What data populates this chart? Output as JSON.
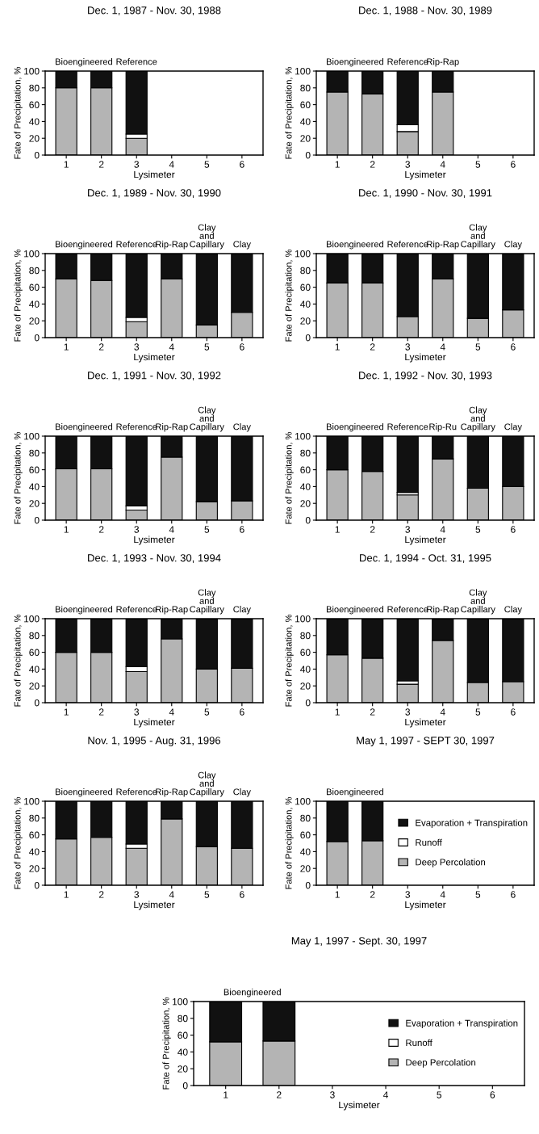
{
  "chart_data": [
    {
      "type": "bar",
      "stacked": true,
      "title": "Dec. 1, 1987 - Nov. 30, 1988",
      "xlabel": "Lysimeter",
      "ylabel": "Fate of Precipitation, %",
      "categories": [
        "1",
        "2",
        "3",
        "4",
        "5",
        "6"
      ],
      "ylim": [
        0,
        100
      ],
      "yticks": [
        0,
        20,
        40,
        60,
        80,
        100
      ],
      "series": [
        {
          "color": "#b4b4b4",
          "values": [
            80,
            80,
            20,
            null,
            null,
            null
          ]
        },
        {
          "color": "#ffffff",
          "values": [
            0,
            0,
            5,
            null,
            null,
            null
          ]
        },
        {
          "color": "#111111",
          "values": [
            20,
            20,
            75,
            null,
            null,
            null
          ]
        }
      ],
      "annotations": [
        {
          "text": "Bioengineered",
          "x": "1",
          "y": 100
        },
        {
          "text": "Reference",
          "x": "3",
          "y": 100
        }
      ]
    },
    {
      "type": "bar",
      "stacked": true,
      "title": "Dec. 1, 1988 - Nov. 30, 1989",
      "xlabel": "Lysimeter",
      "ylabel": "Fate of Precipitation, %",
      "categories": [
        "1",
        "2",
        "3",
        "4",
        "5",
        "6"
      ],
      "ylim": [
        0,
        100
      ],
      "yticks": [
        0,
        20,
        40,
        60,
        80,
        100
      ],
      "series": [
        {
          "color": "#b4b4b4",
          "values": [
            75,
            73,
            28,
            75,
            null,
            null
          ]
        },
        {
          "color": "#ffffff",
          "values": [
            0,
            0,
            8,
            0,
            null,
            null
          ]
        },
        {
          "color": "#111111",
          "values": [
            25,
            27,
            64,
            25,
            null,
            null
          ]
        }
      ],
      "annotations": [
        {
          "text": "Bioengineered",
          "x": "1",
          "y": 100
        },
        {
          "text": "Reference",
          "x": "3",
          "y": 100
        },
        {
          "text": "Rip-Rap",
          "x": "4",
          "y": 100
        }
      ]
    },
    {
      "type": "bar",
      "stacked": true,
      "title": "Dec. 1, 1989 - Nov. 30, 1990",
      "xlabel": "Lysimeter",
      "ylabel": "Fate of Precipitation, %",
      "categories": [
        "1",
        "2",
        "3",
        "4",
        "5",
        "6"
      ],
      "ylim": [
        0,
        100
      ],
      "yticks": [
        0,
        20,
        40,
        60,
        80,
        100
      ],
      "series": [
        {
          "color": "#b4b4b4",
          "values": [
            70,
            68,
            19,
            70,
            15,
            30
          ]
        },
        {
          "color": "#ffffff",
          "values": [
            0,
            0,
            5,
            0,
            0,
            0
          ]
        },
        {
          "color": "#111111",
          "values": [
            30,
            32,
            76,
            30,
            85,
            70
          ]
        }
      ],
      "annotations": [
        {
          "text": "Bioengineered",
          "x": "1",
          "y": 100
        },
        {
          "text": "Reference",
          "x": "3",
          "y": 100
        },
        {
          "text": "Rip-Rap",
          "x": "4",
          "y": 100
        },
        {
          "text": "Clay\nand\nCapillary",
          "x": "5",
          "y": 100
        },
        {
          "text": "Clay",
          "x": "6",
          "y": 100
        }
      ]
    },
    {
      "type": "bar",
      "stacked": true,
      "title": "Dec. 1, 1990 - Nov. 30, 1991",
      "xlabel": "Lysimeter",
      "ylabel": "Fate of Precipitation, %",
      "categories": [
        "1",
        "2",
        "3",
        "4",
        "5",
        "6"
      ],
      "ylim": [
        0,
        100
      ],
      "yticks": [
        0,
        20,
        40,
        60,
        80,
        100
      ],
      "series": [
        {
          "color": "#b4b4b4",
          "values": [
            65,
            65,
            25,
            70,
            23,
            33
          ]
        },
        {
          "color": "#111111",
          "values": [
            35,
            35,
            75,
            30,
            77,
            67
          ]
        }
      ],
      "annotations": [
        {
          "text": "Bioengineered",
          "x": "1",
          "y": 100
        },
        {
          "text": "Reference",
          "x": "3",
          "y": 100
        },
        {
          "text": "Rip-Rap",
          "x": "4",
          "y": 100
        },
        {
          "text": "Clay\nand\nCapillary",
          "x": "5",
          "y": 100
        },
        {
          "text": "Clay",
          "x": "6",
          "y": 100
        }
      ]
    },
    {
      "type": "bar",
      "stacked": true,
      "title": "Dec. 1, 1991 - Nov. 30, 1992",
      "xlabel": "Lysimeter",
      "ylabel": "Fate of Precipitation, %",
      "categories": [
        "1",
        "2",
        "3",
        "4",
        "5",
        "6"
      ],
      "ylim": [
        0,
        100
      ],
      "yticks": [
        0,
        20,
        40,
        60,
        80,
        100
      ],
      "series": [
        {
          "color": "#b4b4b4",
          "values": [
            61,
            61,
            12,
            75,
            22,
            23
          ]
        },
        {
          "color": "#ffffff",
          "values": [
            0,
            0,
            5,
            0,
            0,
            0
          ]
        },
        {
          "color": "#111111",
          "values": [
            39,
            39,
            83,
            25,
            78,
            77
          ]
        }
      ],
      "annotations": [
        {
          "text": "Bioengineered",
          "x": "1",
          "y": 100
        },
        {
          "text": "Reference",
          "x": "3",
          "y": 100
        },
        {
          "text": "Rip-Rap",
          "x": "4",
          "y": 100
        },
        {
          "text": "Clay\nand\nCapillary",
          "x": "5",
          "y": 100
        },
        {
          "text": "Clay",
          "x": "6",
          "y": 100
        }
      ]
    },
    {
      "type": "bar",
      "stacked": true,
      "title": "Dec. 1, 1992 - Nov. 30, 1993",
      "xlabel": "Lysimeter",
      "ylabel": "Fate of Precipitation, %",
      "categories": [
        "1",
        "2",
        "3",
        "4",
        "5",
        "6"
      ],
      "ylim": [
        0,
        100
      ],
      "yticks": [
        0,
        20,
        40,
        60,
        80,
        100
      ],
      "series": [
        {
          "color": "#b4b4b4",
          "values": [
            60,
            58,
            30,
            73,
            38,
            40
          ]
        },
        {
          "color": "#ffffff",
          "values": [
            0,
            0,
            3,
            0,
            0,
            0
          ]
        },
        {
          "color": "#111111",
          "values": [
            40,
            42,
            67,
            27,
            62,
            60
          ]
        }
      ],
      "annotations": [
        {
          "text": "Bioengineered",
          "x": "1",
          "y": 100
        },
        {
          "text": "Reference",
          "x": "3",
          "y": 100
        },
        {
          "text": "Rip-Ru",
          "x": "4",
          "y": 100
        },
        {
          "text": "Clay\nand\nCapillary",
          "x": "5",
          "y": 100
        },
        {
          "text": "Clay",
          "x": "6",
          "y": 100
        }
      ]
    },
    {
      "type": "bar",
      "stacked": true,
      "title": "Dec. 1, 1993 - Nov. 30, 1994",
      "xlabel": "Lysimeter",
      "ylabel": "Fate of Precipitation, %",
      "categories": [
        "1",
        "2",
        "3",
        "4",
        "5",
        "6"
      ],
      "ylim": [
        0,
        100
      ],
      "yticks": [
        0,
        20,
        40,
        60,
        80,
        100
      ],
      "series": [
        {
          "color": "#b4b4b4",
          "values": [
            60,
            60,
            37,
            76,
            40,
            41
          ]
        },
        {
          "color": "#ffffff",
          "values": [
            0,
            0,
            6,
            0,
            0,
            0
          ]
        },
        {
          "color": "#111111",
          "values": [
            40,
            40,
            57,
            24,
            60,
            59
          ]
        }
      ],
      "annotations": [
        {
          "text": "Bioengineered",
          "x": "1",
          "y": 100
        },
        {
          "text": "Reference",
          "x": "3",
          "y": 100
        },
        {
          "text": "Rip-Rap",
          "x": "4",
          "y": 100
        },
        {
          "text": "Clay\nand\nCapillary",
          "x": "5",
          "y": 100
        },
        {
          "text": "Clay",
          "x": "6",
          "y": 100
        }
      ]
    },
    {
      "type": "bar",
      "stacked": true,
      "title": "Dec. 1, 1994 - Oct. 31, 1995",
      "xlabel": "Lysimeter",
      "ylabel": "Fate of Precipitation, %",
      "categories": [
        "1",
        "2",
        "3",
        "4",
        "5",
        "6"
      ],
      "ylim": [
        0,
        100
      ],
      "yticks": [
        0,
        20,
        40,
        60,
        80,
        100
      ],
      "series": [
        {
          "color": "#b4b4b4",
          "values": [
            57,
            53,
            22,
            74,
            24,
            25
          ]
        },
        {
          "color": "#ffffff",
          "values": [
            0,
            0,
            4,
            0,
            0,
            0
          ]
        },
        {
          "color": "#111111",
          "values": [
            43,
            47,
            74,
            26,
            76,
            75
          ]
        }
      ],
      "annotations": [
        {
          "text": "Bioengineered",
          "x": "1",
          "y": 100
        },
        {
          "text": "Reference",
          "x": "3",
          "y": 100
        },
        {
          "text": "Rip-Rap",
          "x": "4",
          "y": 100
        },
        {
          "text": "Clay\nand\nCapillary",
          "x": "5",
          "y": 100
        },
        {
          "text": "Clay",
          "x": "6",
          "y": 100
        }
      ]
    },
    {
      "type": "bar",
      "stacked": true,
      "title": "Nov. 1, 1995 - Aug. 31, 1996",
      "xlabel": "Lysimeter",
      "ylabel": "Fate of Precipitation, %",
      "categories": [
        "1",
        "2",
        "3",
        "4",
        "5",
        "6"
      ],
      "ylim": [
        0,
        100
      ],
      "yticks": [
        0,
        20,
        40,
        60,
        80,
        100
      ],
      "series": [
        {
          "color": "#b4b4b4",
          "values": [
            55,
            57,
            44,
            79,
            46,
            44
          ]
        },
        {
          "color": "#ffffff",
          "values": [
            0,
            0,
            5,
            0,
            0,
            0
          ]
        },
        {
          "color": "#111111",
          "values": [
            45,
            43,
            51,
            21,
            54,
            56
          ]
        }
      ],
      "annotations": [
        {
          "text": "Bioengineered",
          "x": "1",
          "y": 100
        },
        {
          "text": "Reference",
          "x": "3",
          "y": 100
        },
        {
          "text": "Rip-Rap",
          "x": "4",
          "y": 100
        },
        {
          "text": "Clay\nand\nCapillary",
          "x": "5",
          "y": 100
        },
        {
          "text": "Clay",
          "x": "6",
          "y": 100
        }
      ]
    },
    {
      "type": "bar",
      "stacked": true,
      "title": "May 1, 1997 - SEPT 30, 1997",
      "xlabel": "Lysimeter",
      "ylabel": "Fate of Precipitation, %",
      "categories": [
        "1",
        "2",
        "3",
        "4",
        "5",
        "6"
      ],
      "ylim": [
        0,
        100
      ],
      "yticks": [
        0,
        20,
        40,
        60,
        80,
        100
      ],
      "legend": "right",
      "series": [
        {
          "name": "Deep Percolation",
          "color": "#b4b4b4",
          "values": [
            52,
            53,
            null,
            null,
            null,
            null
          ]
        },
        {
          "name": "Runoff",
          "color": "#ffffff",
          "values": [
            0,
            0,
            null,
            null,
            null,
            null
          ]
        },
        {
          "name": "Evaporation + Transpiration",
          "color": "#111111",
          "values": [
            48,
            47,
            null,
            null,
            null,
            null
          ]
        }
      ],
      "annotations": [
        {
          "text": "Bioengineered",
          "x": "1",
          "y": 100
        }
      ]
    },
    {
      "type": "bar",
      "stacked": true,
      "title": "May 1, 1997 - Sept. 30, 1997",
      "xlabel": "Lysimeter",
      "ylabel": "Fate of Precipitation, %",
      "categories": [
        "1",
        "2",
        "3",
        "4",
        "5",
        "6"
      ],
      "ylim": [
        0,
        100
      ],
      "yticks": [
        0,
        20,
        40,
        60,
        80,
        100
      ],
      "legend": "right",
      "series": [
        {
          "name": "Deep Percolation",
          "color": "#b4b4b4",
          "values": [
            52,
            53,
            null,
            null,
            null,
            null
          ]
        },
        {
          "name": "Runoff",
          "color": "#ffffff",
          "values": [
            0,
            0,
            null,
            null,
            null,
            null
          ]
        },
        {
          "name": "Evaporation + Transpiration",
          "color": "#111111",
          "values": [
            48,
            47,
            null,
            null,
            null,
            null
          ]
        }
      ],
      "annotations": [
        {
          "text": "Bioengineered",
          "x": "1",
          "y": 100
        }
      ]
    }
  ]
}
